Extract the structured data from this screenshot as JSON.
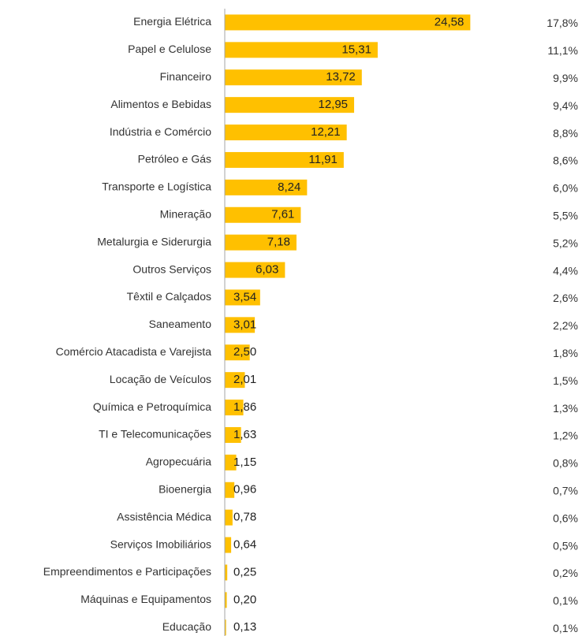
{
  "chart_data": {
    "type": "bar",
    "orientation": "horizontal",
    "categories": [
      "Energia Elétrica",
      "Papel e Celulose",
      "Financeiro",
      "Alimentos e Bebidas",
      "Indústria e Comércio",
      "Petróleo e Gás",
      "Transporte e Logística",
      "Mineração",
      "Metalurgia e Siderurgia",
      "Outros Serviços",
      "Têxtil e Calçados",
      "Saneamento",
      "Comércio Atacadista e Varejista",
      "Locação de Veículos",
      "Química e Petroquímica",
      "TI e Telecomunicações",
      "Agropecuária",
      "Bioenergia",
      "Assistência Médica",
      "Serviços Imobiliários",
      "Empreendimentos e Participações",
      "Máquinas e Equipamentos",
      "Educação"
    ],
    "values": [
      24.58,
      15.31,
      13.72,
      12.95,
      12.21,
      11.91,
      8.24,
      7.61,
      7.18,
      6.03,
      3.54,
      3.01,
      2.5,
      2.01,
      1.86,
      1.63,
      1.15,
      0.96,
      0.78,
      0.64,
      0.25,
      0.2,
      0.13
    ],
    "value_labels": [
      "24,58",
      "15,31",
      "13,72",
      "12,95",
      "12,21",
      "11,91",
      "8,24",
      "7,61",
      "7,18",
      "6,03",
      "3,54",
      "3,01",
      "2,50",
      "2,01",
      "1,86",
      "1,63",
      "1,15",
      "0,96",
      "0,78",
      "0,64",
      "0,25",
      "0,20",
      "0,13"
    ],
    "share_labels": [
      "17,8%",
      "11,1%",
      "9,9%",
      "9,4%",
      "8,8%",
      "8,6%",
      "6,0%",
      "5,5%",
      "5,2%",
      "4,4%",
      "2,6%",
      "2,2%",
      "1,8%",
      "1,5%",
      "1,3%",
      "1,2%",
      "0,8%",
      "0,7%",
      "0,6%",
      "0,5%",
      "0,2%",
      "0,1%",
      "0,1%"
    ],
    "color": "#FFC000",
    "xlim": [
      0,
      30
    ]
  }
}
